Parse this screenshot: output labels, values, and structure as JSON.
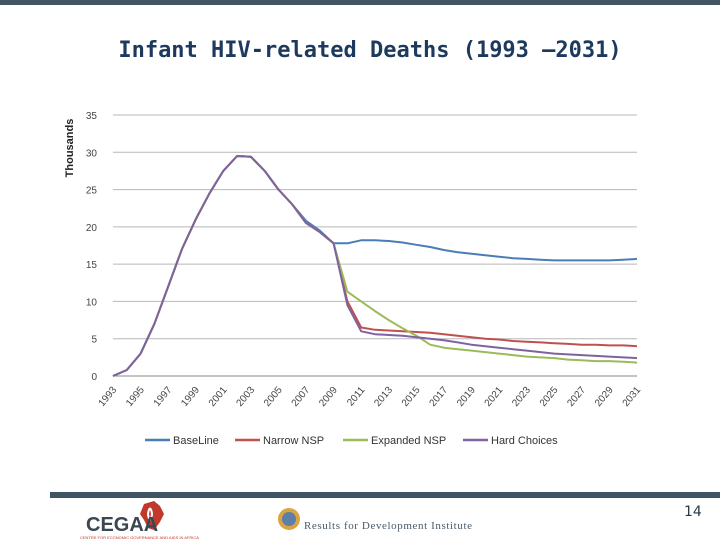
{
  "slide": {
    "title": "Infant HIV-related Deaths (1993 –2031)",
    "page_number": "14"
  },
  "logos": {
    "cegaa": {
      "name": "CEGAA",
      "tagline": "CENTRE FOR ECONOMIC GOVERNANCE AND AIDS IN AFRICA"
    },
    "r4d": {
      "name": "Results for Development Institute"
    }
  },
  "chart_data": {
    "type": "line",
    "title": "",
    "xlabel": "",
    "ylabel": "Thousands",
    "ylim": [
      0,
      35
    ],
    "yticks": [
      0,
      5,
      10,
      15,
      20,
      25,
      30,
      35
    ],
    "x": [
      1993,
      1994,
      1995,
      1996,
      1997,
      1998,
      1999,
      2000,
      2001,
      2002,
      2003,
      2004,
      2005,
      2006,
      2007,
      2008,
      2009,
      2010,
      2011,
      2012,
      2013,
      2014,
      2015,
      2016,
      2017,
      2018,
      2019,
      2020,
      2021,
      2022,
      2023,
      2024,
      2025,
      2026,
      2027,
      2028,
      2029,
      2030,
      2031
    ],
    "xtick_labels": [
      "1993",
      "1995",
      "1997",
      "1999",
      "2001",
      "2003",
      "2005",
      "2007",
      "2009",
      "2011",
      "2013",
      "2015",
      "2017",
      "2019",
      "2021",
      "2023",
      "2025",
      "2027",
      "2029",
      "2031"
    ],
    "grid": true,
    "legend_position": "bottom",
    "series": [
      {
        "name": "BaseLine",
        "color": "#4a7db5",
        "values": [
          0,
          0.8,
          3,
          7,
          12,
          17,
          21,
          24.5,
          27.5,
          29.5,
          29.4,
          27.5,
          25,
          23,
          20.8,
          19.5,
          17.8,
          17.8,
          18.2,
          18.2,
          18.1,
          17.9,
          17.6,
          17.3,
          16.9,
          16.6,
          16.4,
          16.2,
          16.0,
          15.8,
          15.7,
          15.6,
          15.5,
          15.5,
          15.5,
          15.5,
          15.5,
          15.6,
          15.7
        ]
      },
      {
        "name": "Narrow NSP",
        "color": "#c0504d",
        "values": [
          0,
          0.8,
          3,
          7,
          12,
          17,
          21,
          24.5,
          27.5,
          29.5,
          29.4,
          27.5,
          25,
          23,
          20.5,
          19.3,
          17.8,
          10.0,
          6.5,
          6.2,
          6.1,
          6.0,
          5.9,
          5.8,
          5.6,
          5.4,
          5.2,
          5.0,
          4.9,
          4.7,
          4.6,
          4.5,
          4.4,
          4.3,
          4.2,
          4.2,
          4.1,
          4.1,
          4.0
        ]
      },
      {
        "name": "Expanded NSP",
        "color": "#9bbb59",
        "values": [
          0,
          0.8,
          3,
          7,
          12,
          17,
          21,
          24.5,
          27.5,
          29.5,
          29.4,
          27.5,
          25,
          23,
          20.5,
          19.3,
          17.8,
          11.3,
          10.0,
          8.7,
          7.5,
          6.4,
          5.4,
          4.2,
          3.8,
          3.6,
          3.4,
          3.2,
          3.0,
          2.8,
          2.6,
          2.5,
          2.4,
          2.2,
          2.1,
          2.0,
          2.0,
          1.9,
          1.8
        ]
      },
      {
        "name": "Hard Choices",
        "color": "#7f63a0",
        "values": [
          0,
          0.8,
          3,
          7,
          12,
          17,
          21,
          24.5,
          27.5,
          29.5,
          29.4,
          27.5,
          25,
          23,
          20.5,
          19.3,
          17.8,
          9.5,
          6.0,
          5.6,
          5.5,
          5.4,
          5.2,
          5.0,
          4.8,
          4.5,
          4.2,
          4.0,
          3.8,
          3.6,
          3.4,
          3.2,
          3.0,
          2.9,
          2.8,
          2.7,
          2.6,
          2.5,
          2.4
        ]
      }
    ]
  }
}
